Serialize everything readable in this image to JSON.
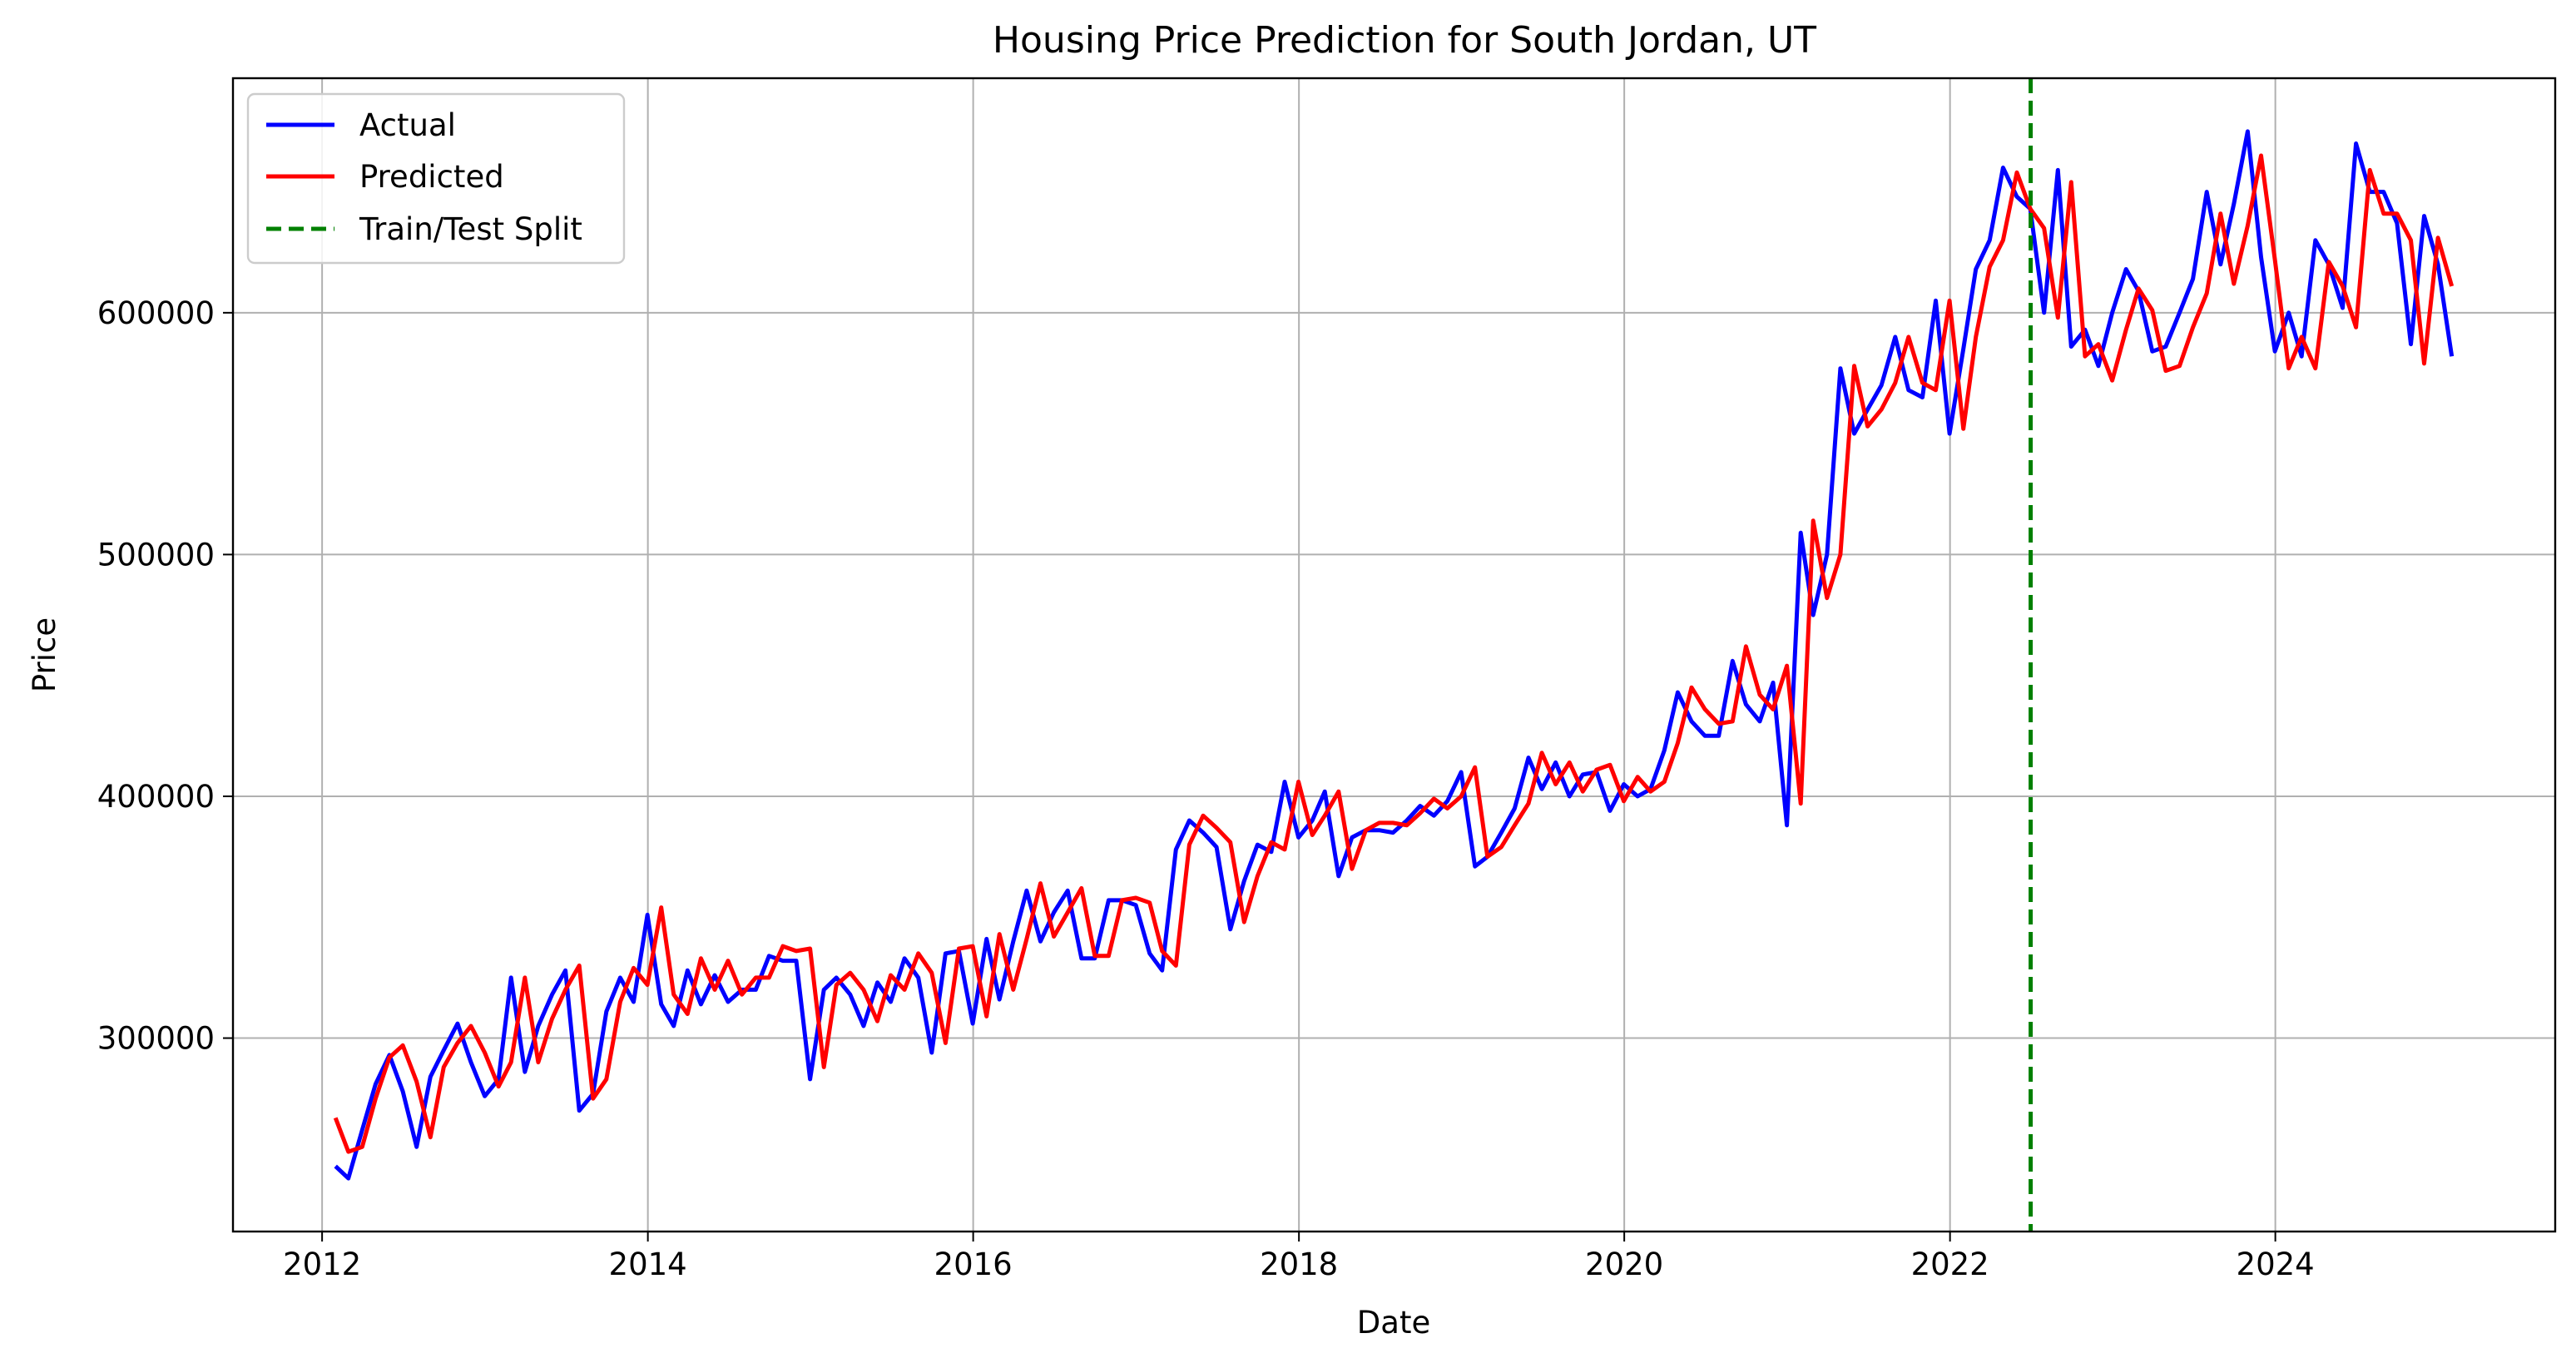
{
  "chart_data": {
    "type": "line",
    "title": "Housing Price Prediction for South Jordan, UT",
    "xlabel": "Date",
    "ylabel": "Price",
    "xlim": [
      "2011-06-15",
      "2025-09-20"
    ],
    "ylim": [
      220000,
      697000
    ],
    "x_ticks": [
      "2012-01-01",
      "2014-01-01",
      "2016-01-01",
      "2018-01-01",
      "2020-01-01",
      "2022-01-01",
      "2024-01-01"
    ],
    "x_tick_labels": [
      "2012",
      "2014",
      "2016",
      "2018",
      "2020",
      "2022",
      "2024"
    ],
    "y_ticks": [
      300000,
      400000,
      500000,
      600000
    ],
    "y_tick_labels": [
      "300000",
      "400000",
      "500000",
      "600000"
    ],
    "grid": true,
    "legend_position": "top-left",
    "x": [
      "2012-01-31",
      "2012-02-29",
      "2012-03-31",
      "2012-04-30",
      "2012-05-31",
      "2012-06-30",
      "2012-07-31",
      "2012-08-31",
      "2012-09-30",
      "2012-10-31",
      "2012-11-30",
      "2012-12-31",
      "2013-01-31",
      "2013-02-28",
      "2013-03-31",
      "2013-04-30",
      "2013-05-31",
      "2013-06-30",
      "2013-07-31",
      "2013-08-31",
      "2013-09-30",
      "2013-10-31",
      "2013-11-30",
      "2013-12-31",
      "2014-01-31",
      "2014-02-28",
      "2014-03-31",
      "2014-04-30",
      "2014-05-31",
      "2014-06-30",
      "2014-07-31",
      "2014-08-31",
      "2014-09-30",
      "2014-10-31",
      "2014-11-30",
      "2014-12-31",
      "2015-01-31",
      "2015-02-28",
      "2015-03-31",
      "2015-04-30",
      "2015-05-31",
      "2015-06-30",
      "2015-07-31",
      "2015-08-31",
      "2015-09-30",
      "2015-10-31",
      "2015-11-30",
      "2015-12-31",
      "2016-01-31",
      "2016-02-29",
      "2016-03-31",
      "2016-04-30",
      "2016-05-31",
      "2016-06-30",
      "2016-07-31",
      "2016-08-31",
      "2016-09-30",
      "2016-10-31",
      "2016-11-30",
      "2016-12-31",
      "2017-01-31",
      "2017-02-28",
      "2017-03-31",
      "2017-04-30",
      "2017-05-31",
      "2017-06-30",
      "2017-07-31",
      "2017-08-31",
      "2017-09-30",
      "2017-10-31",
      "2017-11-30",
      "2017-12-31",
      "2018-01-31",
      "2018-02-28",
      "2018-03-31",
      "2018-04-30",
      "2018-05-31",
      "2018-06-30",
      "2018-07-31",
      "2018-08-31",
      "2018-09-30",
      "2018-10-31",
      "2018-11-30",
      "2018-12-31",
      "2019-01-31",
      "2019-02-28",
      "2019-03-31",
      "2019-04-30",
      "2019-05-31",
      "2019-06-30",
      "2019-07-31",
      "2019-08-31",
      "2019-09-30",
      "2019-10-31",
      "2019-11-30",
      "2019-12-31",
      "2020-01-31",
      "2020-02-29",
      "2020-03-31",
      "2020-04-30",
      "2020-05-31",
      "2020-06-30",
      "2020-07-31",
      "2020-08-31",
      "2020-09-30",
      "2020-10-31",
      "2020-11-30",
      "2020-12-31",
      "2021-01-31",
      "2021-02-28",
      "2021-03-31",
      "2021-04-30",
      "2021-05-31",
      "2021-06-30",
      "2021-07-31",
      "2021-08-31",
      "2021-09-30",
      "2021-10-31",
      "2021-11-30",
      "2021-12-31",
      "2022-01-31",
      "2022-02-28",
      "2022-03-31",
      "2022-04-30",
      "2022-05-31",
      "2022-06-30",
      "2022-07-31",
      "2022-08-31",
      "2022-09-30",
      "2022-10-31",
      "2022-11-30",
      "2022-12-31",
      "2023-01-31",
      "2023-02-28",
      "2023-03-31",
      "2023-04-30",
      "2023-05-31",
      "2023-06-30",
      "2023-07-31",
      "2023-08-31",
      "2023-09-30",
      "2023-10-31",
      "2023-11-30",
      "2023-12-31",
      "2024-01-31",
      "2024-02-29",
      "2024-03-31",
      "2024-04-30",
      "2024-05-31",
      "2024-06-30",
      "2024-07-31",
      "2024-08-31",
      "2024-09-30",
      "2024-10-31",
      "2024-11-30",
      "2024-12-31",
      "2025-01-31"
    ],
    "series": [
      {
        "name": "Actual",
        "color": "#0000ff",
        "style": "solid",
        "values": [
          247000,
          242000,
          262000,
          281000,
          293000,
          278000,
          255000,
          284000,
          295000,
          306000,
          290000,
          276000,
          283000,
          325000,
          286000,
          305000,
          318000,
          328000,
          270000,
          277000,
          311000,
          325000,
          315000,
          351000,
          314000,
          305000,
          328000,
          314000,
          326000,
          315000,
          320000,
          320000,
          334000,
          332000,
          332000,
          283000,
          320000,
          325000,
          318000,
          305000,
          323000,
          315000,
          333000,
          325000,
          294000,
          335000,
          336000,
          306000,
          341000,
          316000,
          340000,
          361000,
          340000,
          352000,
          361000,
          333000,
          333000,
          357000,
          357000,
          355000,
          335000,
          328000,
          378000,
          390000,
          385000,
          379000,
          345000,
          365000,
          380000,
          377000,
          406000,
          383000,
          390000,
          402000,
          367000,
          383000,
          386000,
          386000,
          385000,
          390000,
          396000,
          392000,
          398000,
          410000,
          371000,
          375000,
          385000,
          395000,
          416000,
          403000,
          414000,
          400000,
          409000,
          410000,
          394000,
          405000,
          400000,
          403000,
          419000,
          443000,
          431000,
          425000,
          425000,
          456000,
          438000,
          431000,
          447000,
          388000,
          509000,
          475000,
          500000,
          577000,
          550000,
          560000,
          570000,
          590000,
          568000,
          565000,
          605000,
          550000,
          585000,
          618000,
          630000,
          660000,
          648000,
          643000,
          600000,
          659000,
          586000,
          593000,
          578000,
          600000,
          618000,
          609000,
          584000,
          586000,
          600000,
          614000,
          650000,
          620000,
          645000,
          675000,
          623000,
          584000,
          600000,
          582000,
          630000,
          620000,
          602000,
          670000,
          650000,
          650000,
          637000,
          587000,
          640000,
          620000,
          582000
        ]
      },
      {
        "name": "Predicted",
        "color": "#ff0000",
        "style": "solid",
        "values": [
          267000,
          253000,
          255000,
          275000,
          292000,
          297000,
          282000,
          259000,
          288000,
          298000,
          305000,
          294000,
          280000,
          290000,
          325000,
          290000,
          308000,
          320000,
          330000,
          275000,
          283000,
          315000,
          329000,
          322000,
          354000,
          318000,
          310000,
          333000,
          320000,
          332000,
          318000,
          325000,
          325000,
          338000,
          336000,
          337000,
          288000,
          322000,
          327000,
          320000,
          307000,
          326000,
          320000,
          335000,
          327000,
          298000,
          337000,
          338000,
          309000,
          343000,
          320000,
          341000,
          364000,
          342000,
          352000,
          362000,
          334000,
          334000,
          357000,
          358000,
          356000,
          336000,
          330000,
          380000,
          392000,
          387000,
          381000,
          348000,
          367000,
          381000,
          378000,
          406000,
          384000,
          392000,
          402000,
          370000,
          386000,
          389000,
          389000,
          388000,
          393000,
          399000,
          395000,
          400000,
          412000,
          375000,
          379000,
          388000,
          397000,
          418000,
          405000,
          414000,
          402000,
          411000,
          413000,
          398000,
          408000,
          402000,
          406000,
          422000,
          445000,
          436000,
          430000,
          431000,
          462000,
          442000,
          436000,
          454000,
          397000,
          514000,
          482000,
          500000,
          578000,
          553000,
          560000,
          571000,
          590000,
          571000,
          568000,
          605000,
          552000,
          590000,
          619000,
          630000,
          658000,
          643000,
          635000,
          598000,
          654000,
          582000,
          587000,
          572000,
          593000,
          610000,
          601000,
          576000,
          578000,
          594000,
          608000,
          641000,
          612000,
          636000,
          665000,
          622000,
          577000,
          590000,
          577000,
          621000,
          611000,
          594000,
          659000,
          641000,
          641000,
          630000,
          579000,
          631000,
          611000
        ]
      }
    ],
    "vlines": [
      {
        "name": "Train/Test Split",
        "x": "2022-07-01",
        "color": "#008000",
        "style": "dashed"
      }
    ]
  }
}
